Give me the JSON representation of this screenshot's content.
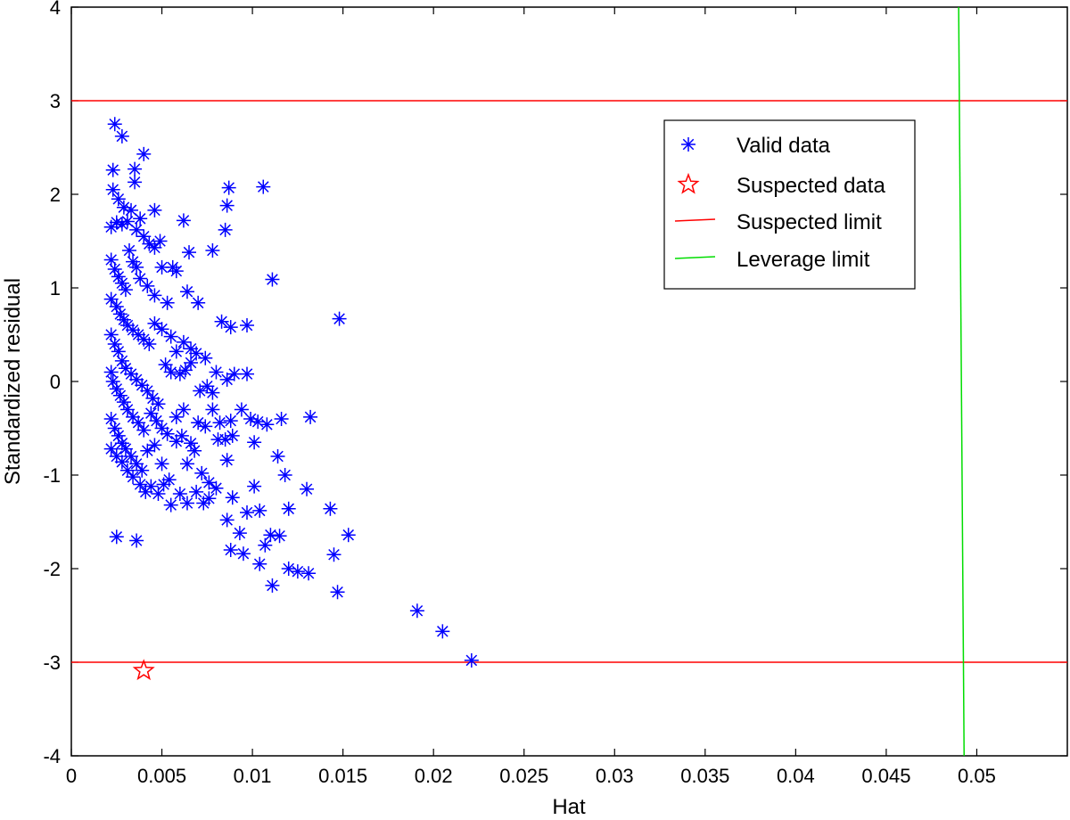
{
  "chart_data": {
    "type": "scatter",
    "title": "",
    "xlabel": "Hat",
    "ylabel": "Standardized residual",
    "xlim": [
      0,
      0.055
    ],
    "ylim": [
      -4,
      4
    ],
    "grid": false,
    "legend_position": "top-right",
    "xticks": [
      0,
      0.005,
      0.01,
      0.015,
      0.02,
      0.025,
      0.03,
      0.035,
      0.04,
      0.045,
      0.05
    ],
    "xtick_labels": [
      "0",
      "0.005",
      "0.01",
      "0.015",
      "0.02",
      "0.025",
      "0.03",
      "0.035",
      "0.04",
      "0.045",
      "0.05"
    ],
    "yticks": [
      -4,
      -3,
      -2,
      -1,
      0,
      1,
      2,
      3,
      4
    ],
    "ytick_labels": [
      "-4",
      "-3",
      "-2",
      "-1",
      "0",
      "1",
      "2",
      "3",
      "4"
    ],
    "legend": [
      {
        "label": "Valid data",
        "marker": "asterisk",
        "color": "#0000ff"
      },
      {
        "label": "Suspected data",
        "marker": "pentagram",
        "color": "#ff0000"
      },
      {
        "label": "Suspected limit",
        "marker": "line",
        "color": "#ff0000"
      },
      {
        "label": "Leverage limit",
        "marker": "line",
        "color": "#00dd00"
      }
    ],
    "suspected_limits": [
      3,
      -3
    ],
    "leverage_limit": {
      "x_top": 0.049,
      "x_bottom": 0.0493
    },
    "series": [
      {
        "name": "Valid data",
        "color": "#0000ff",
        "points": [
          [
            0.0024,
            2.75
          ],
          [
            0.0028,
            2.62
          ],
          [
            0.0035,
            2.27
          ],
          [
            0.0035,
            2.13
          ],
          [
            0.004,
            2.43
          ],
          [
            0.0023,
            2.26
          ],
          [
            0.0023,
            2.05
          ],
          [
            0.0026,
            1.95
          ],
          [
            0.0029,
            1.86
          ],
          [
            0.0033,
            1.83
          ],
          [
            0.0038,
            1.74
          ],
          [
            0.0046,
            1.83
          ],
          [
            0.0062,
            1.72
          ],
          [
            0.0087,
            2.07
          ],
          [
            0.0086,
            1.88
          ],
          [
            0.0106,
            2.08
          ],
          [
            0.0022,
            1.65
          ],
          [
            0.0025,
            1.7
          ],
          [
            0.0028,
            1.68
          ],
          [
            0.0031,
            1.71
          ],
          [
            0.0036,
            1.62
          ],
          [
            0.004,
            1.55
          ],
          [
            0.0043,
            1.47
          ],
          [
            0.0046,
            1.43
          ],
          [
            0.0049,
            1.5
          ],
          [
            0.0056,
            1.22
          ],
          [
            0.0058,
            1.18
          ],
          [
            0.0065,
            1.38
          ],
          [
            0.0078,
            1.4
          ],
          [
            0.0085,
            1.62
          ],
          [
            0.0111,
            1.09
          ],
          [
            0.0022,
            1.3
          ],
          [
            0.0024,
            1.2
          ],
          [
            0.0026,
            1.12
          ],
          [
            0.0028,
            1.05
          ],
          [
            0.003,
            0.98
          ],
          [
            0.0032,
            1.4
          ],
          [
            0.0034,
            1.28
          ],
          [
            0.0036,
            1.22
          ],
          [
            0.0038,
            1.1
          ],
          [
            0.0042,
            1.02
          ],
          [
            0.0046,
            0.92
          ],
          [
            0.005,
            1.22
          ],
          [
            0.0053,
            0.84
          ],
          [
            0.0064,
            0.96
          ],
          [
            0.007,
            0.84
          ],
          [
            0.0083,
            0.64
          ],
          [
            0.0088,
            0.58
          ],
          [
            0.0097,
            0.6
          ],
          [
            0.0148,
            0.67
          ],
          [
            0.0022,
            0.88
          ],
          [
            0.0025,
            0.8
          ],
          [
            0.0027,
            0.72
          ],
          [
            0.0029,
            0.66
          ],
          [
            0.0031,
            0.6
          ],
          [
            0.0034,
            0.55
          ],
          [
            0.0037,
            0.5
          ],
          [
            0.004,
            0.45
          ],
          [
            0.0043,
            0.4
          ],
          [
            0.0046,
            0.62
          ],
          [
            0.005,
            0.56
          ],
          [
            0.0055,
            0.48
          ],
          [
            0.0058,
            0.32
          ],
          [
            0.0062,
            0.42
          ],
          [
            0.0066,
            0.35
          ],
          [
            0.0069,
            0.3
          ],
          [
            0.0074,
            0.25
          ],
          [
            0.008,
            0.1
          ],
          [
            0.0086,
            0.02
          ],
          [
            0.009,
            0.08
          ],
          [
            0.0097,
            0.08
          ],
          [
            0.0022,
            0.5
          ],
          [
            0.0024,
            0.4
          ],
          [
            0.0026,
            0.32
          ],
          [
            0.0028,
            0.22
          ],
          [
            0.003,
            0.14
          ],
          [
            0.0033,
            0.08
          ],
          [
            0.0036,
            0.02
          ],
          [
            0.0039,
            -0.04
          ],
          [
            0.0042,
            -0.1
          ],
          [
            0.0045,
            -0.18
          ],
          [
            0.0048,
            -0.24
          ],
          [
            0.0052,
            0.18
          ],
          [
            0.0055,
            0.1
          ],
          [
            0.006,
            0.08
          ],
          [
            0.0063,
            0.12
          ],
          [
            0.0066,
            0.2
          ],
          [
            0.0071,
            -0.1
          ],
          [
            0.0075,
            -0.05
          ],
          [
            0.0078,
            -0.12
          ],
          [
            0.0022,
            0.1
          ],
          [
            0.0023,
            0.0
          ],
          [
            0.0025,
            -0.08
          ],
          [
            0.0027,
            -0.15
          ],
          [
            0.0029,
            -0.22
          ],
          [
            0.0031,
            -0.3
          ],
          [
            0.0034,
            -0.38
          ],
          [
            0.0037,
            -0.44
          ],
          [
            0.004,
            -0.52
          ],
          [
            0.0044,
            -0.34
          ],
          [
            0.0047,
            -0.42
          ],
          [
            0.005,
            -0.5
          ],
          [
            0.0053,
            -0.56
          ],
          [
            0.0058,
            -0.38
          ],
          [
            0.0062,
            -0.3
          ],
          [
            0.0066,
            -0.66
          ],
          [
            0.007,
            -0.44
          ],
          [
            0.0074,
            -0.48
          ],
          [
            0.0078,
            -0.3
          ],
          [
            0.0082,
            -0.44
          ],
          [
            0.0085,
            -0.62
          ],
          [
            0.0088,
            -0.42
          ],
          [
            0.0094,
            -0.3
          ],
          [
            0.0099,
            -0.4
          ],
          [
            0.0103,
            -0.43
          ],
          [
            0.0108,
            -0.46
          ],
          [
            0.0116,
            -0.4
          ],
          [
            0.0132,
            -0.38
          ],
          [
            0.0022,
            -0.4
          ],
          [
            0.0024,
            -0.5
          ],
          [
            0.0026,
            -0.58
          ],
          [
            0.0028,
            -0.66
          ],
          [
            0.003,
            -0.72
          ],
          [
            0.0033,
            -0.8
          ],
          [
            0.0036,
            -0.88
          ],
          [
            0.0039,
            -0.95
          ],
          [
            0.0042,
            -0.74
          ],
          [
            0.0046,
            -0.68
          ],
          [
            0.005,
            -0.88
          ],
          [
            0.0054,
            -1.05
          ],
          [
            0.0058,
            -0.64
          ],
          [
            0.0061,
            -0.58
          ],
          [
            0.0064,
            -0.88
          ],
          [
            0.0068,
            -0.74
          ],
          [
            0.0072,
            -0.98
          ],
          [
            0.0076,
            -1.08
          ],
          [
            0.0081,
            -0.62
          ],
          [
            0.0086,
            -0.84
          ],
          [
            0.0089,
            -0.58
          ],
          [
            0.0101,
            -0.65
          ],
          [
            0.0114,
            -0.8
          ],
          [
            0.0022,
            -0.72
          ],
          [
            0.0025,
            -0.8
          ],
          [
            0.0028,
            -0.86
          ],
          [
            0.0031,
            -0.95
          ],
          [
            0.0034,
            -1.02
          ],
          [
            0.0038,
            -1.1
          ],
          [
            0.0041,
            -1.18
          ],
          [
            0.0044,
            -1.12
          ],
          [
            0.0048,
            -1.2
          ],
          [
            0.0051,
            -1.1
          ],
          [
            0.0055,
            -1.32
          ],
          [
            0.006,
            -1.2
          ],
          [
            0.0064,
            -1.3
          ],
          [
            0.0069,
            -1.18
          ],
          [
            0.0073,
            -1.3
          ],
          [
            0.0076,
            -1.25
          ],
          [
            0.008,
            -1.14
          ],
          [
            0.0086,
            -1.48
          ],
          [
            0.0089,
            -1.24
          ],
          [
            0.0093,
            -1.62
          ],
          [
            0.0097,
            -1.4
          ],
          [
            0.0101,
            -1.12
          ],
          [
            0.0104,
            -1.38
          ],
          [
            0.0107,
            -1.75
          ],
          [
            0.011,
            -1.64
          ],
          [
            0.0115,
            -1.65
          ],
          [
            0.0118,
            -1.0
          ],
          [
            0.012,
            -1.36
          ],
          [
            0.013,
            -1.15
          ],
          [
            0.0088,
            -1.8
          ],
          [
            0.0095,
            -1.84
          ],
          [
            0.0104,
            -1.95
          ],
          [
            0.0111,
            -2.18
          ],
          [
            0.012,
            -2.0
          ],
          [
            0.0125,
            -2.03
          ],
          [
            0.0131,
            -2.05
          ],
          [
            0.0143,
            -1.36
          ],
          [
            0.0145,
            -1.85
          ],
          [
            0.0147,
            -2.25
          ],
          [
            0.0153,
            -1.64
          ],
          [
            0.0025,
            -1.66
          ],
          [
            0.0036,
            -1.7
          ],
          [
            0.0191,
            -2.45
          ],
          [
            0.0205,
            -2.67
          ],
          [
            0.0221,
            -2.98
          ]
        ]
      },
      {
        "name": "Suspected data",
        "color": "#ff0000",
        "points": [
          [
            0.004,
            -3.09
          ]
        ]
      }
    ]
  }
}
